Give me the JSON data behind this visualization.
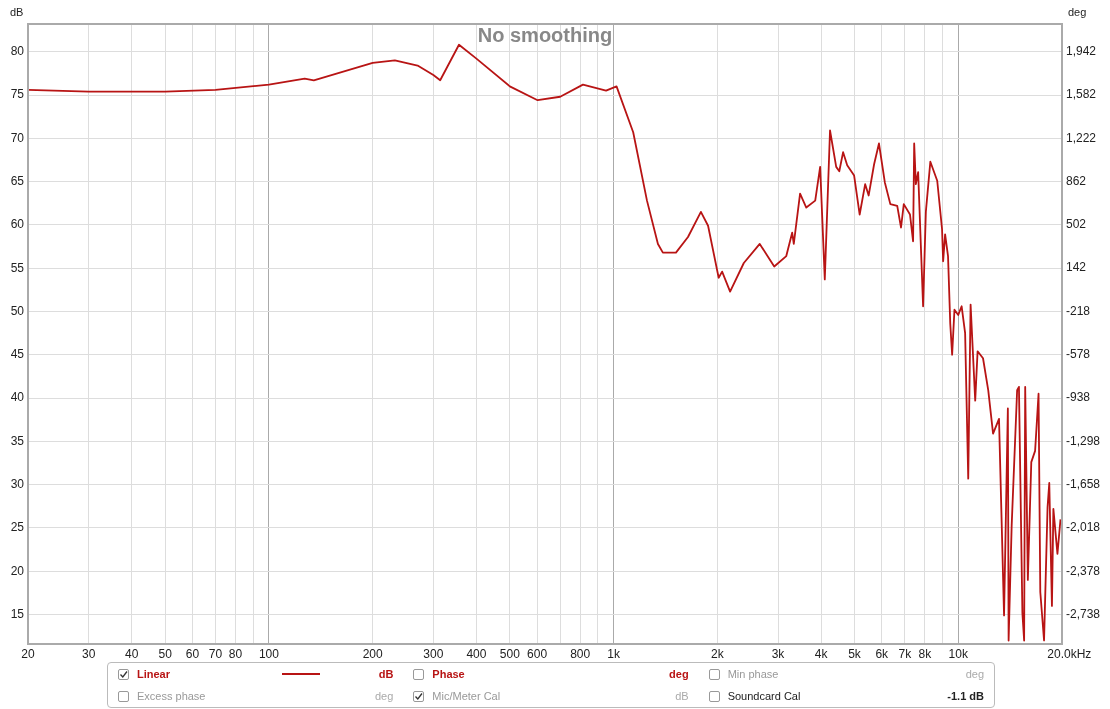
{
  "chart_data": {
    "type": "line",
    "xlabel": "Hz",
    "ylabel": "dB",
    "y2label": "deg",
    "annotations": [
      "No smoothing",
      "dB",
      "Phase",
      "deg",
      "Min phase",
      "deg",
      "Excess phase",
      "deg",
      "Mic/Meter Cal",
      "dB",
      "Soundcard Cal",
      "-1.1 dB"
    ],
    "series": [
      {
        "name": "Linear",
        "color": "#b81414",
        "x": [
          20,
          30,
          50,
          70,
          100,
          127,
          135,
          200,
          232,
          270,
          300,
          314,
          356,
          400,
          500,
          602,
          700,
          815,
          951,
          1020,
          1140,
          1250,
          1345,
          1390,
          1517,
          1644,
          1792,
          1880,
          2018,
          2065,
          2178,
          2387,
          2655,
          2925,
          3170,
          3297,
          3333,
          3476,
          3623,
          3846,
          3975,
          4100,
          4246,
          4425,
          4517,
          4634,
          4762,
          4988,
          5176,
          5370,
          5497,
          5700,
          5888,
          6124,
          6353,
          6652,
          6823,
          6950,
          7244,
          7396,
          7450,
          7534,
          7650,
          7907,
          8054,
          8300,
          8690,
          8975,
          9040,
          9160,
          9340,
          9480,
          9600,
          9750,
          10000,
          10230,
          10470,
          10690,
          10860,
          11200,
          11380,
          11800,
          12220,
          12620,
          13130,
          13580,
          13930,
          14000,
          14290,
          14820,
          15000,
          15350,
          15530,
          15640,
          15920,
          16290,
          16710,
          17100,
          17300,
          17740,
          18160,
          18370,
          18700,
          18880,
          19400,
          19800
        ],
        "values": [
          75.6,
          75.4,
          75.4,
          75.6,
          76.2,
          76.9,
          76.7,
          78.7,
          79.0,
          78.4,
          77.3,
          76.7,
          80.8,
          79.2,
          76.0,
          74.4,
          74.8,
          76.2,
          75.5,
          76.0,
          70.7,
          62.8,
          57.8,
          56.8,
          56.8,
          58.6,
          61.5,
          59.9,
          53.9,
          54.6,
          52.3,
          55.6,
          57.8,
          55.2,
          56.4,
          59.1,
          57.8,
          63.6,
          62.0,
          62.8,
          66.7,
          53.7,
          70.9,
          66.7,
          66.2,
          68.4,
          66.9,
          65.7,
          61.2,
          64.7,
          63.4,
          67.0,
          69.4,
          64.9,
          62.4,
          62.2,
          59.7,
          62.4,
          61.2,
          58.1,
          69.4,
          64.7,
          66.1,
          50.6,
          61.5,
          67.3,
          65.1,
          59.5,
          55.8,
          58.9,
          56.4,
          48.6,
          45.0,
          50.2,
          49.6,
          50.6,
          47.5,
          30.7,
          50.8,
          39.7,
          45.4,
          44.6,
          40.9,
          35.9,
          37.6,
          14.9,
          38.8,
          12.0,
          25.3,
          40.9,
          41.3,
          15.2,
          12.0,
          41.3,
          19.0,
          32.6,
          33.9,
          40.5,
          17.6,
          12.0,
          27.4,
          30.2,
          16.0,
          27.2,
          22.0,
          26.0
        ]
      }
    ],
    "log": "x",
    "xlim": [
      20,
      20000
    ],
    "xticks": [
      20,
      30,
      40,
      50,
      60,
      70,
      80,
      {
        "value": 90,
        "label": null
      },
      100,
      200,
      300,
      400,
      500,
      600,
      {
        "value": 700,
        "label": null
      },
      800,
      {
        "value": 900,
        "label": null
      },
      {
        "value": 1000,
        "label": "1k"
      },
      {
        "value": 2000,
        "label": "2k"
      },
      {
        "value": 3000,
        "label": "3k"
      },
      {
        "value": 4000,
        "label": "4k"
      },
      {
        "value": 5000,
        "label": "5k"
      },
      {
        "value": 6000,
        "label": "6k"
      },
      {
        "value": 7000,
        "label": "7k"
      },
      {
        "value": 8000,
        "label": "8k"
      },
      {
        "value": 9000,
        "label": null
      },
      {
        "value": 10000,
        "label": "10k"
      },
      {
        "value": 20000,
        "label": "20.0k"
      }
    ],
    "ylim": [
      11.6,
      83.2
    ],
    "yticks": [
      15,
      20,
      25,
      30,
      35,
      40,
      45,
      50,
      55,
      60,
      65,
      70,
      75,
      80
    ],
    "y2lim": [
      -2983,
      2172
    ],
    "y2ticks": [
      {
        "value": 1942,
        "label": "1,942"
      },
      {
        "value": 1582,
        "label": "1,582"
      },
      {
        "value": 1222,
        "label": "1,222"
      },
      862,
      502,
      142,
      -218,
      -578,
      -938,
      {
        "value": -1298,
        "label": "-1,298"
      },
      {
        "value": -1658,
        "label": "-1,658"
      },
      {
        "value": -2018,
        "label": "-2,018"
      },
      {
        "value": -2378,
        "label": "-2,378"
      },
      {
        "value": -2738,
        "label": "-2,738"
      }
    ],
    "grid": true,
    "legend": "bottom",
    "marker": "none",
    "line_style": "solid"
  }
}
